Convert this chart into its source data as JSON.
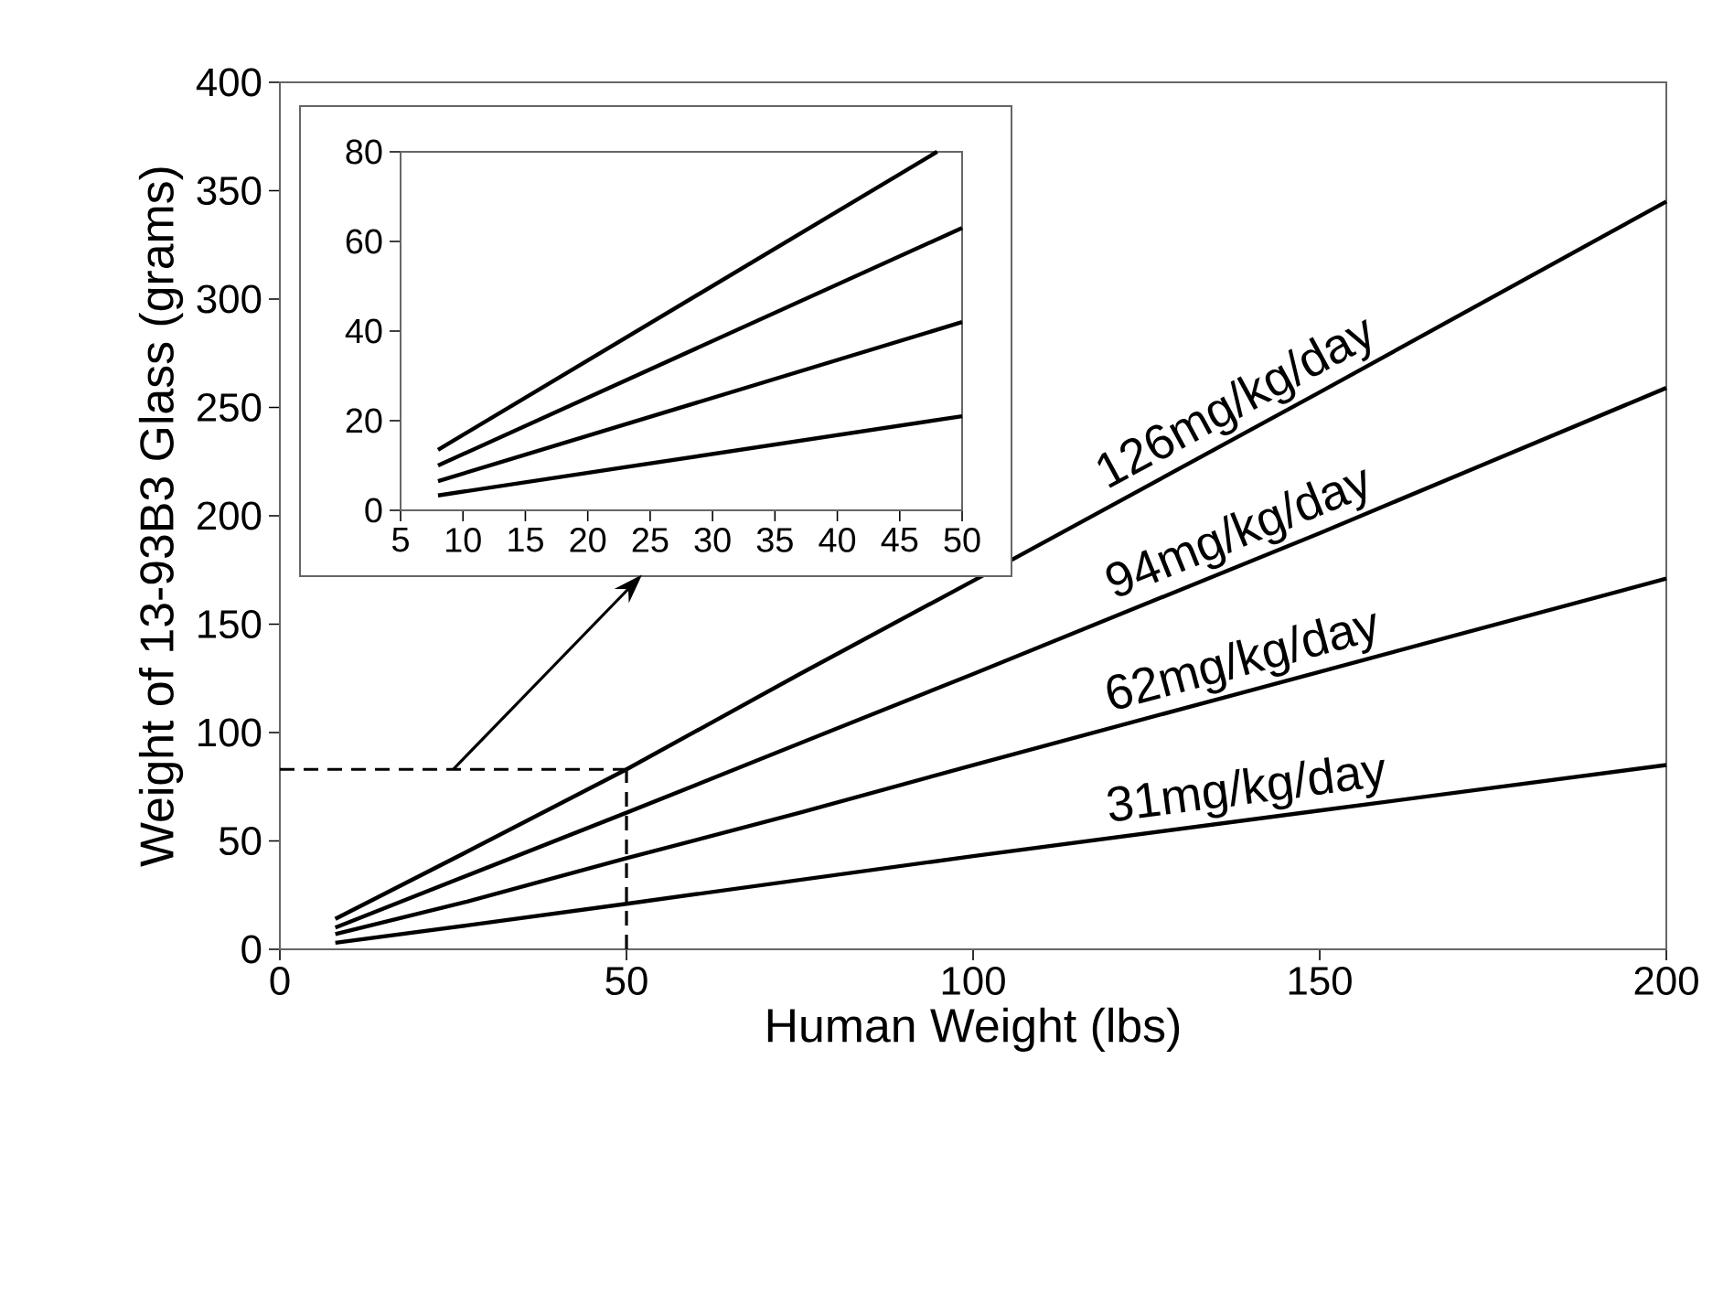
{
  "chart_data": [
    {
      "type": "line",
      "xlabel": "Human Weight (lbs)",
      "ylabel": "Weight of 13-93B3 Glass (grams)",
      "x": [
        8,
        27,
        50,
        75,
        100,
        150,
        200
      ],
      "series": [
        {
          "name": "126mg/kg/day",
          "color": "#000000",
          "values": [
            14,
            45,
            83,
            127,
            170,
            257,
            345
          ]
        },
        {
          "name": "94mg/kg/day",
          "color": "#000000",
          "values": [
            10,
            34,
            63,
            95,
            127,
            192,
            259
          ]
        },
        {
          "name": "62mg/kg/day",
          "color": "#000000",
          "values": [
            7,
            22,
            42,
            63,
            85,
            128,
            171
          ]
        },
        {
          "name": "31mg/kg/day",
          "color": "#000000",
          "values": [
            3,
            11,
            21,
            32,
            43,
            64,
            85
          ]
        }
      ],
      "xlim": [
        0,
        200
      ],
      "ylim": [
        0,
        400
      ],
      "xticks": [
        0,
        50,
        100,
        150,
        200
      ],
      "yticks": [
        0,
        50,
        100,
        150,
        200,
        250,
        300,
        350,
        400
      ],
      "ref_lines": [
        {
          "axis": "x",
          "value": 50,
          "line_style": "dashed"
        },
        {
          "axis": "y",
          "value": 83,
          "line_style": "dashed"
        }
      ],
      "line_style": "solid",
      "grid": false,
      "legend": false
    },
    {
      "type": "line",
      "series": [
        {
          "color": "#000000",
          "x": [
            8,
            48
          ],
          "values": [
            13.5,
            80
          ]
        },
        {
          "color": "#000000",
          "x": [
            8,
            50
          ],
          "values": [
            10,
            63
          ]
        },
        {
          "color": "#000000",
          "x": [
            8,
            50
          ],
          "values": [
            6.5,
            42
          ]
        },
        {
          "color": "#000000",
          "x": [
            8,
            50
          ],
          "values": [
            3.3,
            21
          ]
        }
      ],
      "xlim": [
        5,
        50
      ],
      "ylim": [
        0,
        80
      ],
      "xticks": [
        5,
        10,
        15,
        20,
        25,
        30,
        35,
        40,
        45,
        50
      ],
      "yticks": [
        0,
        20,
        40,
        60,
        80
      ],
      "line_style": "solid",
      "grid": false,
      "legend": false
    }
  ]
}
